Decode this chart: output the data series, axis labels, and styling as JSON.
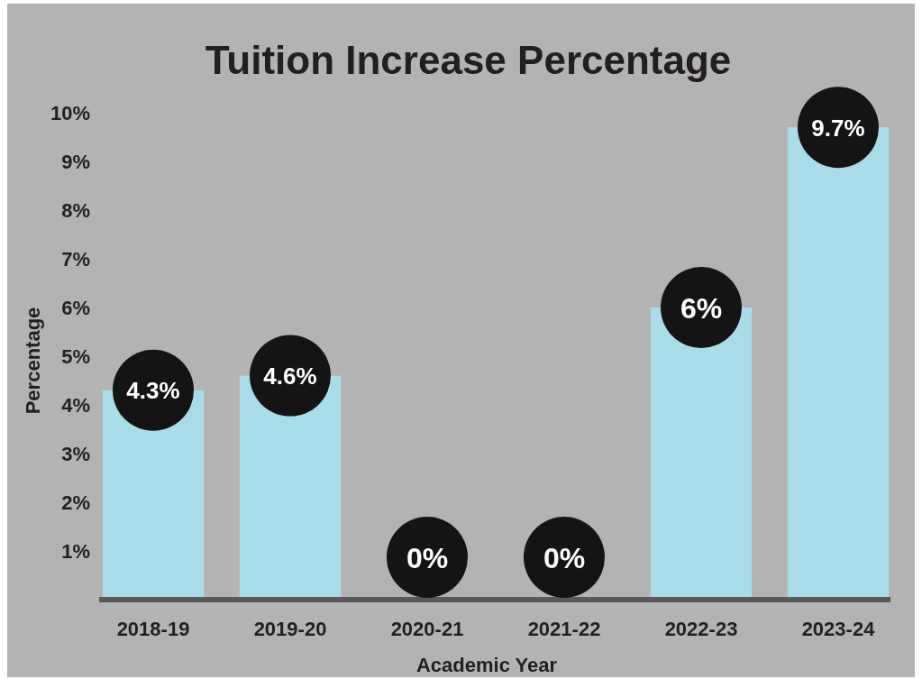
{
  "chart_data": {
    "type": "bar",
    "title": "Tuition Increase Percentage",
    "xlabel": "Academic Year",
    "ylabel": "Percentage",
    "categories": [
      "2018-19",
      "2019-20",
      "2020-21",
      "2021-22",
      "2022-23",
      "2023-24"
    ],
    "values": [
      4.3,
      4.6,
      0,
      0,
      6,
      9.7
    ],
    "value_labels": [
      "4.3%",
      "4.6%",
      "0%",
      "0%",
      "6%",
      "9.7%"
    ],
    "color": "#a8dce8",
    "ylim": [
      0,
      10
    ],
    "yticks": [
      {
        "value": 1,
        "label": "1%"
      },
      {
        "value": 2,
        "label": "2%"
      },
      {
        "value": 3,
        "label": "3%"
      },
      {
        "value": 4,
        "label": "4%"
      },
      {
        "value": 5,
        "label": "5%"
      },
      {
        "value": 6,
        "label": "6%"
      },
      {
        "value": 7,
        "label": "7%"
      },
      {
        "value": 8,
        "label": "8%"
      },
      {
        "value": 9,
        "label": "9%"
      },
      {
        "value": 10,
        "label": "10%"
      }
    ]
  }
}
